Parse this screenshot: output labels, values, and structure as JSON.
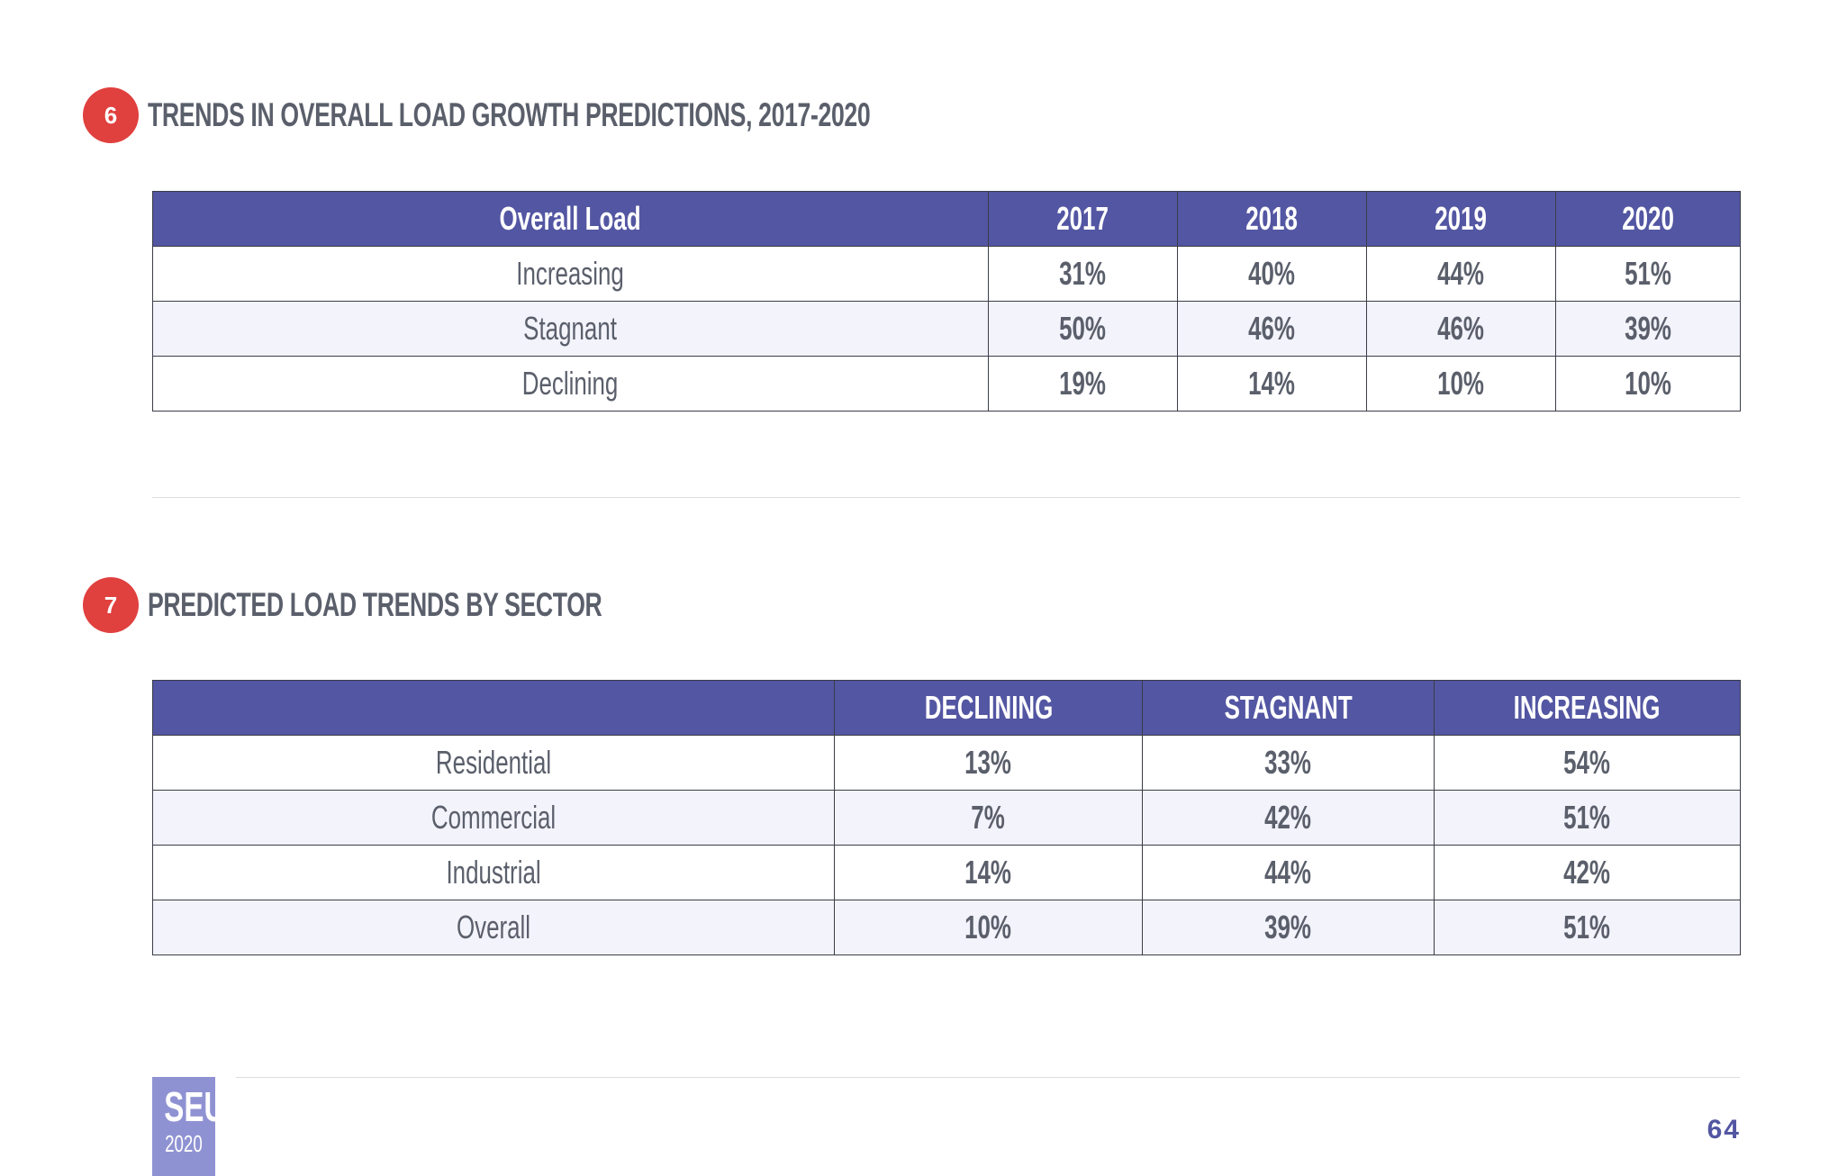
{
  "section6": {
    "number": "6",
    "title": "TRENDS IN OVERALL LOAD GROWTH PREDICTIONS, 2017-2020",
    "headers": [
      "Overall Load",
      "2017",
      "2018",
      "2019",
      "2020"
    ],
    "rows": [
      {
        "label": "Increasing",
        "values": [
          "31%",
          "40%",
          "44%",
          "51%"
        ]
      },
      {
        "label": "Stagnant",
        "values": [
          "50%",
          "46%",
          "46%",
          "39%"
        ]
      },
      {
        "label": "Declining",
        "values": [
          "19%",
          "14%",
          "10%",
          "10%"
        ]
      }
    ]
  },
  "section7": {
    "number": "7",
    "title": "PREDICTED LOAD TRENDS BY SECTOR",
    "headers": [
      "",
      "DECLINING",
      "STAGNANT",
      "INCREASING"
    ],
    "rows": [
      {
        "label": "Residential",
        "values": [
          "13%",
          "33%",
          "54%"
        ]
      },
      {
        "label": "Commercial",
        "values": [
          "7%",
          "42%",
          "51%"
        ]
      },
      {
        "label": "Industrial",
        "values": [
          "14%",
          "44%",
          "42%"
        ]
      },
      {
        "label": "Overall",
        "values": [
          "10%",
          "39%",
          "51%"
        ]
      }
    ]
  },
  "footer": {
    "logo_top": "SEU",
    "logo_bottom": "2020",
    "page_number": "64"
  },
  "colors": {
    "header_bg": "#5356a2",
    "badge": "#e0403e",
    "alt_row": "#f3f3fb",
    "logo_bg": "#8f92d2",
    "text": "#5a5f6b"
  }
}
